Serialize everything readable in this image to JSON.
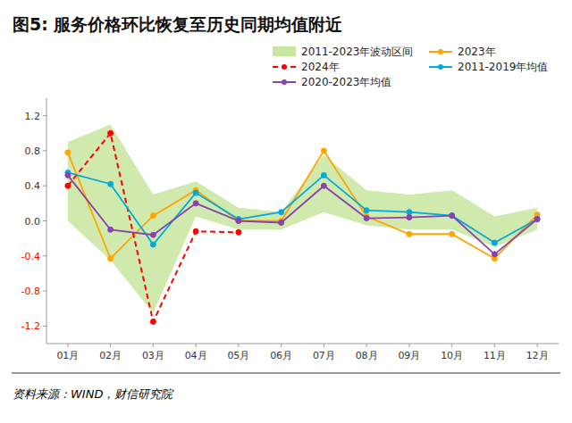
{
  "chart_data": {
    "type": "line",
    "title": "图5: 服务价格环比恢复至历史同期均值附近",
    "annotations": [
      "资料来源：WIND，财信研究院"
    ],
    "categories": [
      "01月",
      "02月",
      "03月",
      "04月",
      "05月",
      "06月",
      "07月",
      "08月",
      "09月",
      "10月",
      "11月",
      "12月"
    ],
    "series": [
      {
        "name": "2011-2023年波动区间",
        "type": "band",
        "color": "#c8e6a0",
        "upper": [
          0.9,
          1.1,
          0.3,
          0.45,
          0.15,
          0.1,
          0.75,
          0.35,
          0.3,
          0.35,
          0.05,
          0.15
        ],
        "lower": [
          0.0,
          -0.45,
          -1.05,
          0.05,
          -0.1,
          -0.1,
          0.1,
          -0.05,
          -0.1,
          -0.1,
          -0.3,
          -0.1
        ]
      },
      {
        "name": "2023年",
        "type": "line",
        "color": "#FFA500",
        "marker": "circle",
        "line_style": "solid",
        "values": [
          0.78,
          -0.43,
          0.06,
          0.35,
          0.0,
          0.0,
          0.8,
          0.05,
          -0.15,
          -0.15,
          -0.43,
          0.07
        ]
      },
      {
        "name": "2024年",
        "type": "line",
        "color": "#FF0000",
        "marker": "circle",
        "line_style": "dashed",
        "values": [
          0.4,
          1.0,
          -1.15,
          -0.12,
          -0.13,
          null,
          null,
          null,
          null,
          null,
          null,
          null
        ]
      },
      {
        "name": "2011-2019年均值",
        "type": "line",
        "color": "#00AADD",
        "marker": "circle",
        "line_style": "solid",
        "values": [
          0.55,
          0.42,
          -0.27,
          0.32,
          0.02,
          0.1,
          0.52,
          0.12,
          0.1,
          0.06,
          -0.25,
          0.02
        ]
      },
      {
        "name": "2020-2023年均值",
        "type": "line",
        "color": "#8844AA",
        "marker": "circle",
        "line_style": "solid",
        "values": [
          0.52,
          -0.1,
          -0.16,
          0.2,
          0.0,
          -0.02,
          0.4,
          0.03,
          0.04,
          0.06,
          -0.38,
          0.02
        ]
      }
    ],
    "ylim": [
      -1.4,
      1.4
    ],
    "yticks": [
      -1.2,
      -0.8,
      -0.4,
      {
        "value": 0,
        "label": "0.0"
      },
      0.4,
      0.8,
      1.2
    ],
    "grid": false,
    "legend": "upper right"
  }
}
